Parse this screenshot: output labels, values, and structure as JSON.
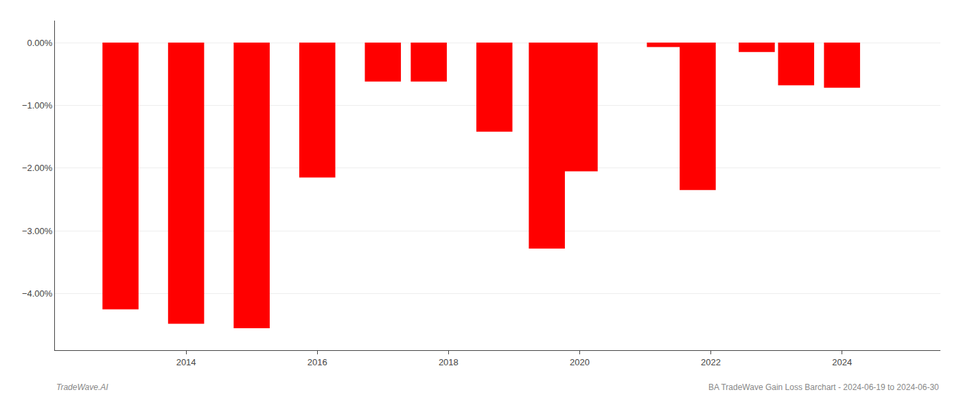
{
  "chart_data": {
    "type": "bar",
    "x": [
      2013,
      2014,
      2015,
      2016,
      2017,
      2017.7,
      2018.7,
      2019.5,
      2020,
      2021.3,
      2021.8,
      2022.7,
      2023.3,
      2024
    ],
    "values": [
      -4.25,
      -4.48,
      -4.55,
      -2.15,
      -0.62,
      -0.62,
      -1.42,
      -3.28,
      -2.05,
      -0.07,
      -2.35,
      -0.15,
      -0.68,
      -0.72
    ],
    "color": "#ff0000",
    "xlim": [
      2012.0,
      2025.5
    ],
    "xticks": [
      2014,
      2016,
      2018,
      2020,
      2022,
      2024
    ],
    "ylim": [
      -4.9,
      0.35
    ],
    "yticks": [
      {
        "value": 0.0,
        "label": "0.00%"
      },
      {
        "value": -1.0,
        "label": "−1.00%"
      },
      {
        "value": -2.0,
        "label": "−2.00%"
      },
      {
        "value": -3.0,
        "label": "−3.00%"
      },
      {
        "value": -4.0,
        "label": "−4.00%"
      }
    ],
    "grid": true,
    "annotations": [
      "TradeWave.AI",
      "BA TradeWave Gain Loss Barchart - 2024-06-19 to 2024-06-30"
    ]
  }
}
